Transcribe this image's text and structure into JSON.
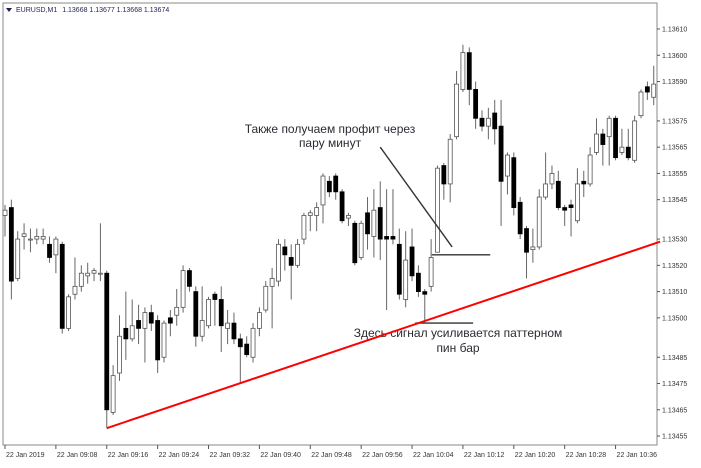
{
  "header": {
    "symbol": "EURUSD,M1",
    "ohlc": "1.13668 1.13677 1.13668 1.13674",
    "menu_icon": "triangle-down-icon"
  },
  "chart_data": {
    "type": "candlestick",
    "symbol": "EURUSD",
    "timeframe": "M1",
    "start_time": "2019-01-22 09:00",
    "ylim": [
      1.1345,
      1.13614
    ],
    "y_ticks": [
      "1.13610",
      "1.13600",
      "1.13590",
      "1.13575",
      "1.13565",
      "1.13555",
      "1.13545",
      "1.13530",
      "1.13520",
      "1.13510",
      "1.13500",
      "1.13485",
      "1.13475",
      "1.13465",
      "1.13455"
    ],
    "x_ticks": [
      {
        "minute": 0,
        "label": "22 Jan 2019"
      },
      {
        "minute": 8,
        "label": "22 Jan 09:08"
      },
      {
        "minute": 16,
        "label": "22 Jan 09:16"
      },
      {
        "minute": 24,
        "label": "22 Jan 09:24"
      },
      {
        "minute": 32,
        "label": "22 Jan 09:32"
      },
      {
        "minute": 40,
        "label": "22 Jan 09:40"
      },
      {
        "minute": 48,
        "label": "22 Jan 09:48"
      },
      {
        "minute": 56,
        "label": "22 Jan 09:56"
      },
      {
        "minute": 64,
        "label": "22 Jan 10:04"
      },
      {
        "minute": 72,
        "label": "22 Jan 10:12"
      },
      {
        "minute": 80,
        "label": "22 Jan 10:20"
      },
      {
        "minute": 88,
        "label": "22 Jan 10:28"
      },
      {
        "minute": 96,
        "label": "22 Jan 10:36"
      }
    ],
    "candle_fields": [
      "open",
      "high",
      "low",
      "close"
    ],
    "candles": [
      [
        1.13539,
        1.13543,
        1.13531,
        1.13541
      ],
      [
        1.13542,
        1.13545,
        1.13507,
        1.13514
      ],
      [
        1.13515,
        1.13533,
        1.13514,
        1.1353
      ],
      [
        1.13531,
        1.13536,
        1.13526,
        1.13532
      ],
      [
        1.1353,
        1.13534,
        1.13525,
        1.1353
      ],
      [
        1.1353,
        1.13534,
        1.13528,
        1.13531
      ],
      [
        1.1353,
        1.13534,
        1.13528,
        1.13531
      ],
      [
        1.13528,
        1.13531,
        1.13521,
        1.13523
      ],
      [
        1.13524,
        1.13531,
        1.13517,
        1.1353
      ],
      [
        1.13528,
        1.13529,
        1.13494,
        1.13496
      ],
      [
        1.13496,
        1.13509,
        1.13495,
        1.13508
      ],
      [
        1.13509,
        1.13523,
        1.13507,
        1.13512
      ],
      [
        1.13512,
        1.1352,
        1.1351,
        1.13517
      ],
      [
        1.13516,
        1.13521,
        1.13513,
        1.13517
      ],
      [
        1.13517,
        1.13519,
        1.13514,
        1.13518
      ],
      [
        1.13517,
        1.13536,
        1.13514,
        1.13517
      ],
      [
        1.13517,
        1.13518,
        1.13458,
        1.13465
      ],
      [
        1.13464,
        1.13482,
        1.13463,
        1.13478
      ],
      [
        1.13479,
        1.13501,
        1.13476,
        1.13493
      ],
      [
        1.13496,
        1.1351,
        1.13484,
        1.13492
      ],
      [
        1.13492,
        1.13507,
        1.13491,
        1.13497
      ],
      [
        1.13499,
        1.13505,
        1.1349,
        1.13496
      ],
      [
        1.13496,
        1.13504,
        1.13483,
        1.13502
      ],
      [
        1.13502,
        1.13505,
        1.13495,
        1.13498
      ],
      [
        1.13499,
        1.13501,
        1.13479,
        1.13484
      ],
      [
        1.13485,
        1.13499,
        1.13483,
        1.13498
      ],
      [
        1.135,
        1.13503,
        1.13493,
        1.13498
      ],
      [
        1.13501,
        1.13511,
        1.13497,
        1.13504
      ],
      [
        1.13504,
        1.1352,
        1.13502,
        1.13518
      ],
      [
        1.13518,
        1.13519,
        1.1351,
        1.13512
      ],
      [
        1.1351,
        1.13512,
        1.13489,
        1.13493
      ],
      [
        1.13493,
        1.13512,
        1.13491,
        1.13499
      ],
      [
        1.13497,
        1.13508,
        1.13496,
        1.13507
      ],
      [
        1.13509,
        1.1351,
        1.13497,
        1.13507
      ],
      [
        1.13507,
        1.13512,
        1.13487,
        1.13497
      ],
      [
        1.13496,
        1.13503,
        1.1349,
        1.13498
      ],
      [
        1.13498,
        1.13502,
        1.1349,
        1.13492
      ],
      [
        1.13492,
        1.13494,
        1.13475,
        1.13489
      ],
      [
        1.1349,
        1.13493,
        1.13485,
        1.13486
      ],
      [
        1.13485,
        1.13498,
        1.13483,
        1.13496
      ],
      [
        1.13496,
        1.13504,
        1.13493,
        1.13502
      ],
      [
        1.13503,
        1.13514,
        1.13502,
        1.13512
      ],
      [
        1.13512,
        1.13519,
        1.13496,
        1.13515
      ],
      [
        1.13514,
        1.1353,
        1.13512,
        1.13528
      ],
      [
        1.13527,
        1.1353,
        1.13518,
        1.13524
      ],
      [
        1.13523,
        1.13528,
        1.13507,
        1.1352
      ],
      [
        1.1352,
        1.1353,
        1.13519,
        1.13528
      ],
      [
        1.1353,
        1.1354,
        1.13528,
        1.13539
      ],
      [
        1.13539,
        1.13541,
        1.13533,
        1.1354
      ],
      [
        1.13539,
        1.13544,
        1.13533,
        1.13542
      ],
      [
        1.13543,
        1.13555,
        1.13536,
        1.13554
      ],
      [
        1.13552,
        1.13554,
        1.13546,
        1.13548
      ],
      [
        1.13554,
        1.13555,
        1.13545,
        1.13548
      ],
      [
        1.13548,
        1.13549,
        1.13536,
        1.13537
      ],
      [
        1.13538,
        1.1354,
        1.13535,
        1.13539
      ],
      [
        1.13536,
        1.13537,
        1.1352,
        1.13521
      ],
      [
        1.13523,
        1.13537,
        1.13522,
        1.13536
      ],
      [
        1.1354,
        1.13546,
        1.13526,
        1.13532
      ],
      [
        1.13531,
        1.13549,
        1.13523,
        1.13541
      ],
      [
        1.13542,
        1.13552,
        1.13522,
        1.1353
      ],
      [
        1.13531,
        1.13549,
        1.13503,
        1.1353
      ],
      [
        1.13531,
        1.13549,
        1.13528,
        1.1353
      ],
      [
        1.13528,
        1.13534,
        1.13507,
        1.13509
      ],
      [
        1.13507,
        1.13533,
        1.13504,
        1.13522
      ],
      [
        1.13527,
        1.13534,
        1.13514,
        1.13516
      ],
      [
        1.13517,
        1.1352,
        1.13508,
        1.1351
      ],
      [
        1.1351,
        1.13511,
        1.13498,
        1.13509
      ],
      [
        1.13512,
        1.1353,
        1.1351,
        1.13523
      ],
      [
        1.13525,
        1.13558,
        1.13525,
        1.13557
      ],
      [
        1.13558,
        1.13559,
        1.13545,
        1.13551
      ],
      [
        1.13551,
        1.1357,
        1.13544,
        1.13568
      ],
      [
        1.13569,
        1.13594,
        1.13568,
        1.13589
      ],
      [
        1.13587,
        1.13604,
        1.13586,
        1.13601
      ],
      [
        1.13601,
        1.13603,
        1.13581,
        1.13587
      ],
      [
        1.13587,
        1.1359,
        1.13572,
        1.13576
      ],
      [
        1.13576,
        1.13579,
        1.13571,
        1.13573
      ],
      [
        1.13573,
        1.1358,
        1.13568,
        1.13576
      ],
      [
        1.13578,
        1.13583,
        1.13566,
        1.13572
      ],
      [
        1.13573,
        1.13583,
        1.13535,
        1.13552
      ],
      [
        1.13554,
        1.13563,
        1.13547,
        1.13562
      ],
      [
        1.13561,
        1.13563,
        1.13539,
        1.13542
      ],
      [
        1.13544,
        1.13546,
        1.1353,
        1.13532
      ],
      [
        1.13534,
        1.13535,
        1.13515,
        1.13525
      ],
      [
        1.13526,
        1.13534,
        1.13521,
        1.13527
      ],
      [
        1.13527,
        1.13549,
        1.13526,
        1.13546
      ],
      [
        1.13546,
        1.13563,
        1.13545,
        1.13551
      ],
      [
        1.13551,
        1.13558,
        1.13549,
        1.13555
      ],
      [
        1.13552,
        1.13556,
        1.13541,
        1.13542
      ],
      [
        1.13542,
        1.13543,
        1.13535,
        1.13541
      ],
      [
        1.13543,
        1.13545,
        1.13531,
        1.13542
      ],
      [
        1.13537,
        1.13557,
        1.13536,
        1.13551
      ],
      [
        1.13552,
        1.13556,
        1.13546,
        1.13551
      ],
      [
        1.13551,
        1.13565,
        1.1355,
        1.13562
      ],
      [
        1.13563,
        1.13576,
        1.13562,
        1.1357
      ],
      [
        1.1357,
        1.13572,
        1.13558,
        1.13566
      ],
      [
        1.13569,
        1.13577,
        1.13558,
        1.13576
      ],
      [
        1.13576,
        1.13577,
        1.1356,
        1.13561
      ],
      [
        1.13563,
        1.13572,
        1.13562,
        1.13565
      ],
      [
        1.13565,
        1.13572,
        1.1356,
        1.13561
      ],
      [
        1.1356,
        1.13577,
        1.13559,
        1.13575
      ],
      [
        1.13577,
        1.13587,
        1.13576,
        1.13586
      ],
      [
        1.13588,
        1.1359,
        1.13583,
        1.13586
      ],
      [
        1.13584,
        1.13596,
        1.13581,
        1.13589
      ]
    ],
    "colors": {
      "bull_body": "#ffffff",
      "bull_outline": "#555555",
      "bear_body": "#000000",
      "wick": "#666666",
      "trendline": "#ff0000",
      "annotation_line": "#333333"
    },
    "trendline": {
      "from": {
        "minute": 16,
        "price": 1.13458
      },
      "to": {
        "minute": 103,
        "price": 1.13529
      }
    },
    "annotation_lines": [
      {
        "from": {
          "minute": 59,
          "price": 1.13565
        },
        "to": {
          "minute": 70.3,
          "price": 1.13527
        }
      },
      {
        "from": {
          "minute": 67.1,
          "price": 1.13524
        },
        "to": {
          "minute": 76.3,
          "price": 1.13524
        }
      },
      {
        "from": {
          "minute": 64.5,
          "price": 1.13498
        },
        "to": {
          "minute": 73.6,
          "price": 1.13498
        }
      }
    ],
    "annotations": [
      {
        "lines": [
          "Также получаем профит через",
          "пару минут"
        ]
      },
      {
        "lines": [
          "Здесь сигнал усиливается паттерном",
          "пин бар"
        ]
      }
    ],
    "grid": false
  }
}
